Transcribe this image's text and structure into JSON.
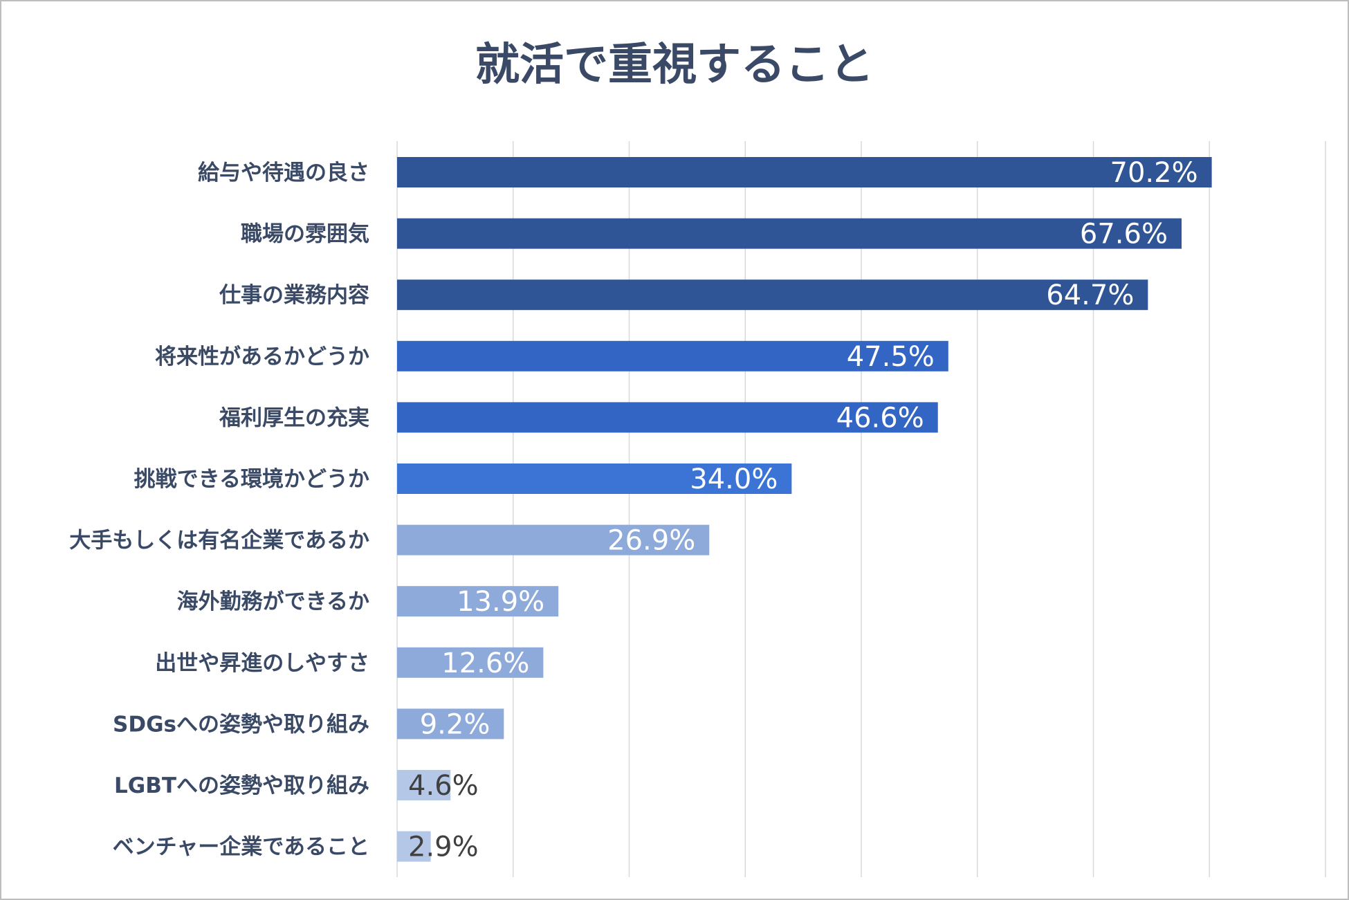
{
  "chart_data": {
    "type": "bar",
    "orientation": "horizontal",
    "title": "就活で重視すること",
    "categories": [
      "給与や待遇の良さ",
      "職場の雰囲気",
      "仕事の業務内容",
      "将来性があるかどうか",
      "福利厚生の充実",
      "挑戦できる環境かどうか",
      "大手もしくは有名企業であるか",
      "海外勤務ができるか",
      "出世や昇進のしやすさ",
      "SDGsへの姿勢や取り組み",
      "LGBTへの姿勢や取り組み",
      "ベンチャー企業であること"
    ],
    "values": [
      70.2,
      67.6,
      64.7,
      47.5,
      46.6,
      34.0,
      26.9,
      13.9,
      12.6,
      9.2,
      4.6,
      2.9
    ],
    "value_labels": [
      "70.2%",
      "67.6%",
      "64.7%",
      "47.5%",
      "46.6%",
      "34.0%",
      "26.9%",
      "13.9%",
      "12.6%",
      "9.2%",
      "4.6%",
      "2.9%"
    ],
    "bar_colors": [
      "#2f5597",
      "#2f5597",
      "#2f5597",
      "#3366c4",
      "#3366c4",
      "#3b74d4",
      "#8eaadb",
      "#8eaadb",
      "#8eaadb",
      "#8eaadb",
      "#b4c7e7",
      "#b4c7e7"
    ],
    "label_colors": [
      "#ffffff",
      "#ffffff",
      "#ffffff",
      "#ffffff",
      "#ffffff",
      "#ffffff",
      "#ffffff",
      "#ffffff",
      "#ffffff",
      "#ffffff",
      "#404040",
      "#404040"
    ],
    "xlim": [
      0,
      80
    ],
    "grid": true,
    "legend": "none"
  },
  "colors": {
    "title": "#3a4a66",
    "category_text": "#3a4a66",
    "gridline": "#d9d9d9"
  }
}
